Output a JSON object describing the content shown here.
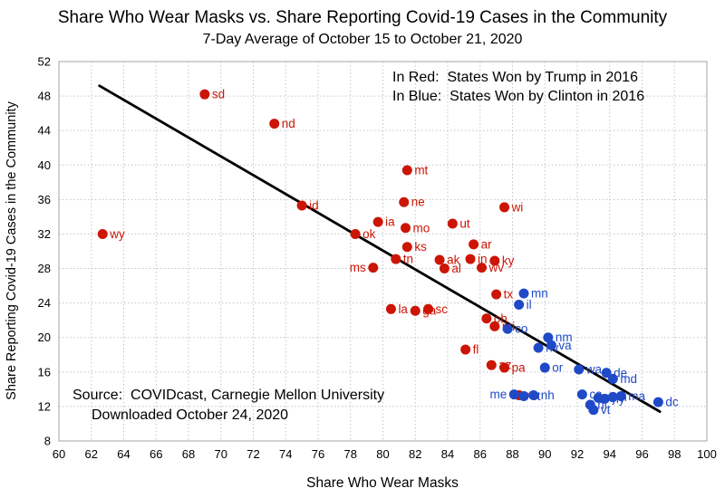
{
  "chart_data": {
    "type": "scatter",
    "title": "Share Who Wear Masks vs. Share Reporting Covid-19 Cases in the Community",
    "subtitle": "7-Day Average of October 15 to October 21, 2020",
    "xlabel": "Share Who Wear Masks",
    "ylabel": "Share Reporting Covid-19 Cases in the Community",
    "xlim": [
      60,
      100
    ],
    "ylim": [
      8,
      52
    ],
    "x_ticks": [
      60,
      62,
      64,
      66,
      68,
      70,
      72,
      74,
      76,
      78,
      80,
      82,
      84,
      86,
      88,
      90,
      92,
      94,
      96,
      98,
      100
    ],
    "y_ticks": [
      8,
      12,
      16,
      20,
      24,
      28,
      32,
      36,
      40,
      44,
      48,
      52
    ],
    "grid": true,
    "legend_position": "top-right-inside",
    "legend": {
      "line1": "In Red:  States Won by Trump in 2016",
      "line2": "In Blue:  States Won by Clinton in 2016"
    },
    "source": {
      "line1": "Source:  COVIDcast, Carnegie Mellon University",
      "line2": "Downloaded October 24, 2020"
    },
    "colors": {
      "trump": "#cc1505",
      "clinton": "#1f49c7",
      "trend": "#000000",
      "grid": "#bfc5cc",
      "frame": "#9fa6ad"
    },
    "trend_line": {
      "x1": 62.5,
      "y1": 49.2,
      "x2": 97.1,
      "y2": 11.4
    },
    "series": [
      {
        "name": "States Won by Trump in 2016",
        "color_key": "trump",
        "points": [
          {
            "label": "wy",
            "x": 62.7,
            "y": 32.0
          },
          {
            "label": "sd",
            "x": 69.0,
            "y": 48.2
          },
          {
            "label": "nd",
            "x": 73.3,
            "y": 44.8
          },
          {
            "label": "id",
            "x": 75.0,
            "y": 35.3
          },
          {
            "label": "mt",
            "x": 81.5,
            "y": 39.4
          },
          {
            "label": "ne",
            "x": 81.3,
            "y": 35.7
          },
          {
            "label": "ia",
            "x": 79.7,
            "y": 33.4
          },
          {
            "label": "mo",
            "x": 81.4,
            "y": 32.7
          },
          {
            "label": "ut",
            "x": 84.3,
            "y": 33.2
          },
          {
            "label": "ok",
            "x": 78.3,
            "y": 32.0
          },
          {
            "label": "wi",
            "x": 87.5,
            "y": 35.1
          },
          {
            "label": "ks",
            "x": 81.5,
            "y": 30.5
          },
          {
            "label": "ar",
            "x": 85.6,
            "y": 30.8
          },
          {
            "label": "tn",
            "x": 80.8,
            "y": 29.1
          },
          {
            "label": "ak",
            "x": 83.5,
            "y": 29.0
          },
          {
            "label": "in",
            "x": 85.4,
            "y": 29.1
          },
          {
            "label": "ky",
            "x": 86.9,
            "y": 28.9
          },
          {
            "label": "wv",
            "x": 86.1,
            "y": 28.1
          },
          {
            "label": "ms",
            "x": 79.4,
            "y": 28.1,
            "side": "left"
          },
          {
            "label": "al",
            "x": 83.8,
            "y": 28.0
          },
          {
            "label": "tx",
            "x": 87.0,
            "y": 25.0
          },
          {
            "label": "la",
            "x": 80.5,
            "y": 23.3
          },
          {
            "label": "ga",
            "x": 82.0,
            "y": 23.1
          },
          {
            "label": "sc",
            "x": 82.8,
            "y": 23.3
          },
          {
            "label": "oh",
            "x": 86.4,
            "y": 22.2
          },
          {
            "label": "mi",
            "x": 86.9,
            "y": 21.3
          },
          {
            "label": "fl",
            "x": 85.1,
            "y": 18.6
          },
          {
            "label": "az",
            "x": 86.7,
            "y": 16.8
          },
          {
            "label": "pa",
            "x": 87.5,
            "y": 16.5
          },
          {
            "label": "nc",
            "x": 88.4,
            "y": 13.3
          }
        ]
      },
      {
        "name": "States Won by Clinton in 2016",
        "color_key": "clinton",
        "points": [
          {
            "label": "mn",
            "x": 88.7,
            "y": 25.1
          },
          {
            "label": "il",
            "x": 88.4,
            "y": 23.8
          },
          {
            "label": "co",
            "x": 87.7,
            "y": 21.0
          },
          {
            "label": "nm",
            "x": 90.2,
            "y": 20.0
          },
          {
            "label": "va",
            "x": 90.4,
            "y": 19.1
          },
          {
            "label": "nv",
            "x": 89.6,
            "y": 18.8
          },
          {
            "label": "or",
            "x": 90.0,
            "y": 16.5
          },
          {
            "label": "wa",
            "x": 92.1,
            "y": 16.3
          },
          {
            "label": "de",
            "x": 93.8,
            "y": 15.9
          },
          {
            "label": "md",
            "x": 94.2,
            "y": 15.2
          },
          {
            "label": "ca",
            "x": 92.3,
            "y": 13.4
          },
          {
            "label": "me",
            "x": 88.1,
            "y": 13.4,
            "side": "left"
          },
          {
            "label": "ct",
            "x": 88.7,
            "y": 13.2
          },
          {
            "label": "nh",
            "x": 89.3,
            "y": 13.3
          },
          {
            "label": "nj",
            "x": 93.3,
            "y": 13.0
          },
          {
            "label": "ny",
            "x": 93.7,
            "y": 12.9
          },
          {
            "label": "ri",
            "x": 94.2,
            "y": 13.1
          },
          {
            "label": "ma",
            "x": 94.7,
            "y": 13.2
          },
          {
            "label": "vt",
            "x": 93.0,
            "y": 11.6
          },
          {
            "label": "hi",
            "x": 92.8,
            "y": 12.2
          },
          {
            "label": "dc",
            "x": 97.0,
            "y": 12.5
          }
        ]
      }
    ]
  }
}
